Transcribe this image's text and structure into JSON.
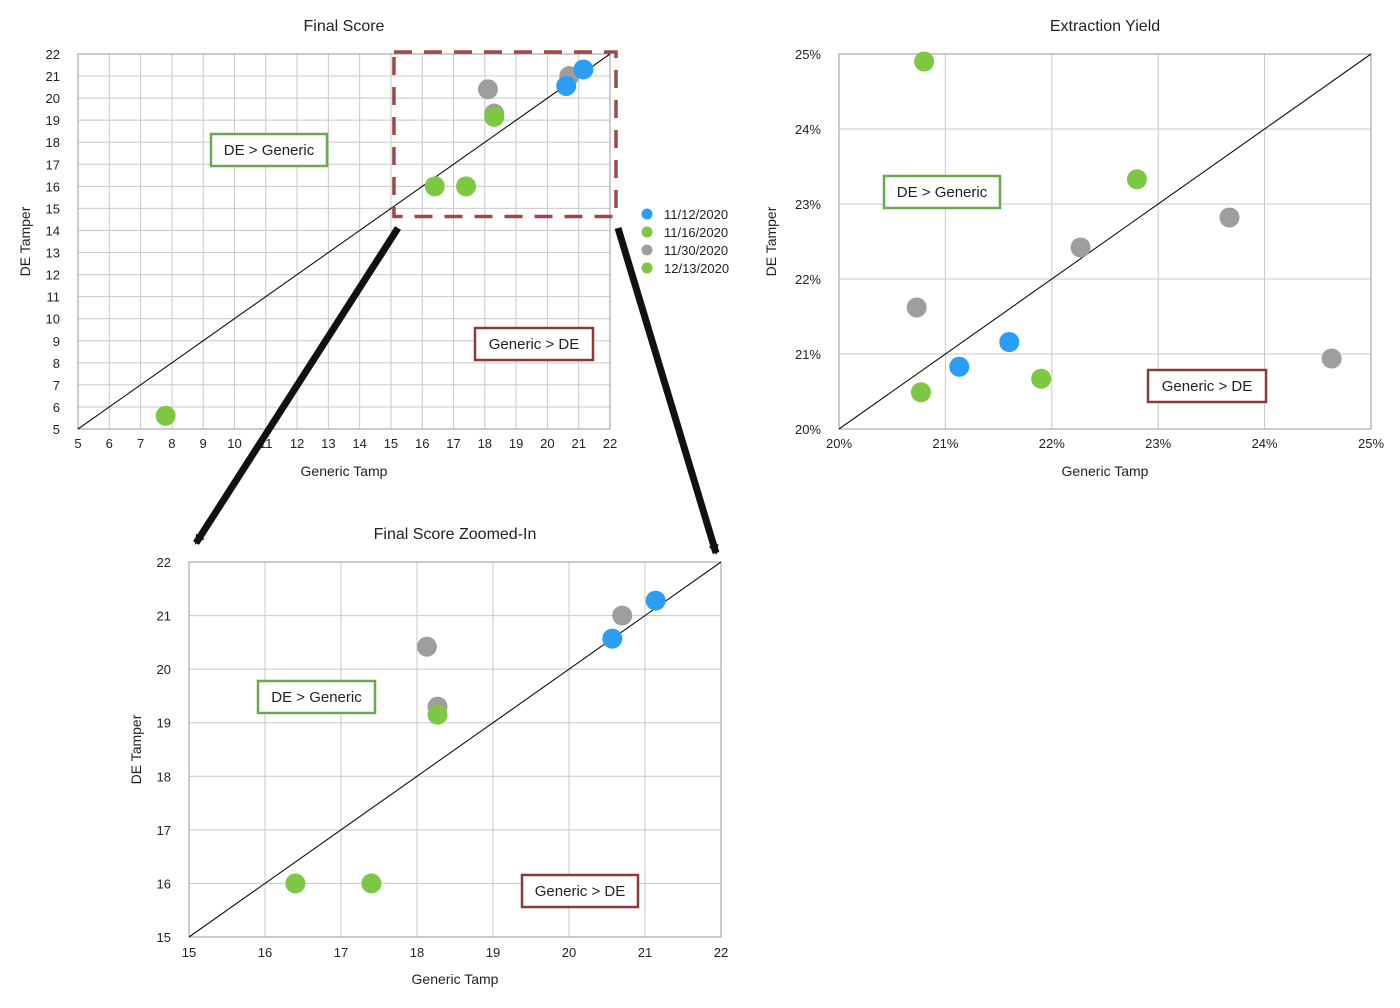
{
  "colors": {
    "series_blue": "#2a9df4",
    "series_green": "#7dc843",
    "series_gray": "#9e9e9e",
    "box_green": "#6aa84f",
    "box_red": "#8b3a3a",
    "zoom_box": "#9b4a48",
    "arrow": "#111111"
  },
  "legend": {
    "placement": "right of Final Score chart",
    "entries": [
      {
        "label": "11/12/2020",
        "color": "#2a9df4"
      },
      {
        "label": "11/16/2020",
        "color": "#7dc843"
      },
      {
        "label": "11/30/2020",
        "color": "#9e9e9e"
      },
      {
        "label": "12/13/2020",
        "color": "#7dc843"
      }
    ]
  },
  "chart_data": [
    {
      "id": "final",
      "type": "scatter",
      "title": "Final Score",
      "xlabel": "Generic Tamp",
      "ylabel": "DE Tamper",
      "xlim": [
        5,
        22
      ],
      "ylim": [
        5,
        22
      ],
      "xticks": [
        "5",
        "6",
        "7",
        "8",
        "9",
        "10",
        "11",
        "12",
        "13",
        "14",
        "15",
        "16",
        "17",
        "18",
        "19",
        "20",
        "21",
        "22"
      ],
      "yticks": [
        "5",
        "6",
        "7",
        "8",
        "9",
        "10",
        "11",
        "12",
        "13",
        "14",
        "15",
        "16",
        "17",
        "18",
        "19",
        "20",
        "21",
        "22"
      ],
      "grid": true,
      "diagonal": true,
      "annotations": [
        {
          "text": "DE > Generic",
          "style": "green"
        },
        {
          "text": "Generic > DE",
          "style": "red"
        }
      ],
      "highlight_region": {
        "x": [
          15,
          22
        ],
        "y": [
          14.5,
          22
        ]
      },
      "points": [
        {
          "x": 7.8,
          "y": 5.6,
          "series": "green"
        },
        {
          "x": 16.4,
          "y": 16.0,
          "series": "green"
        },
        {
          "x": 17.4,
          "y": 16.0,
          "series": "green"
        },
        {
          "x": 18.1,
          "y": 20.4,
          "series": "gray"
        },
        {
          "x": 18.3,
          "y": 19.3,
          "series": "gray"
        },
        {
          "x": 18.3,
          "y": 19.15,
          "series": "green"
        },
        {
          "x": 20.7,
          "y": 21.0,
          "series": "gray"
        },
        {
          "x": 20.6,
          "y": 20.55,
          "series": "blue"
        },
        {
          "x": 21.15,
          "y": 21.3,
          "series": "blue"
        }
      ]
    },
    {
      "id": "zoom",
      "type": "scatter",
      "title": "Final Score Zoomed-In",
      "xlabel": "Generic Tamp",
      "ylabel": "DE Tamper",
      "xlim": [
        15,
        22
      ],
      "ylim": [
        15,
        22
      ],
      "xticks": [
        "15",
        "16",
        "17",
        "18",
        "19",
        "20",
        "21",
        "22"
      ],
      "yticks": [
        "15",
        "16",
        "17",
        "18",
        "19",
        "20",
        "21",
        "22"
      ],
      "grid": true,
      "diagonal": true,
      "annotations": [
        {
          "text": "DE > Generic",
          "style": "green"
        },
        {
          "text": "Generic > DE",
          "style": "red"
        }
      ],
      "points": [
        {
          "x": 16.4,
          "y": 16.0,
          "series": "green"
        },
        {
          "x": 17.4,
          "y": 16.0,
          "series": "green"
        },
        {
          "x": 18.13,
          "y": 20.42,
          "series": "gray"
        },
        {
          "x": 18.27,
          "y": 19.3,
          "series": "gray"
        },
        {
          "x": 18.27,
          "y": 19.15,
          "series": "green"
        },
        {
          "x": 20.7,
          "y": 21.0,
          "series": "gray"
        },
        {
          "x": 20.57,
          "y": 20.57,
          "series": "blue"
        },
        {
          "x": 21.14,
          "y": 21.28,
          "series": "blue"
        }
      ]
    },
    {
      "id": "yield",
      "type": "scatter",
      "title": "Extraction Yield",
      "xlabel": "Generic Tamp",
      "ylabel": "DE Tamper",
      "xlim": [
        20,
        25
      ],
      "ylim": [
        20,
        25
      ],
      "xticks": [
        "20%",
        "21%",
        "22%",
        "23%",
        "24%",
        "25%"
      ],
      "yticks": [
        "20%",
        "21%",
        "22%",
        "23%",
        "24%",
        "25%"
      ],
      "grid": true,
      "diagonal": true,
      "annotations": [
        {
          "text": "DE > Generic",
          "style": "green"
        },
        {
          "text": "Generic > DE",
          "style": "red"
        }
      ],
      "points": [
        {
          "x": 20.8,
          "y": 24.9,
          "series": "green"
        },
        {
          "x": 22.8,
          "y": 23.33,
          "series": "green"
        },
        {
          "x": 23.67,
          "y": 22.82,
          "series": "gray"
        },
        {
          "x": 22.27,
          "y": 22.42,
          "series": "gray"
        },
        {
          "x": 20.73,
          "y": 21.62,
          "series": "gray"
        },
        {
          "x": 21.6,
          "y": 21.16,
          "series": "blue"
        },
        {
          "x": 21.13,
          "y": 20.83,
          "series": "blue"
        },
        {
          "x": 20.77,
          "y": 20.49,
          "series": "green"
        },
        {
          "x": 21.9,
          "y": 20.67,
          "series": "green"
        },
        {
          "x": 24.63,
          "y": 20.94,
          "series": "gray"
        }
      ]
    }
  ]
}
